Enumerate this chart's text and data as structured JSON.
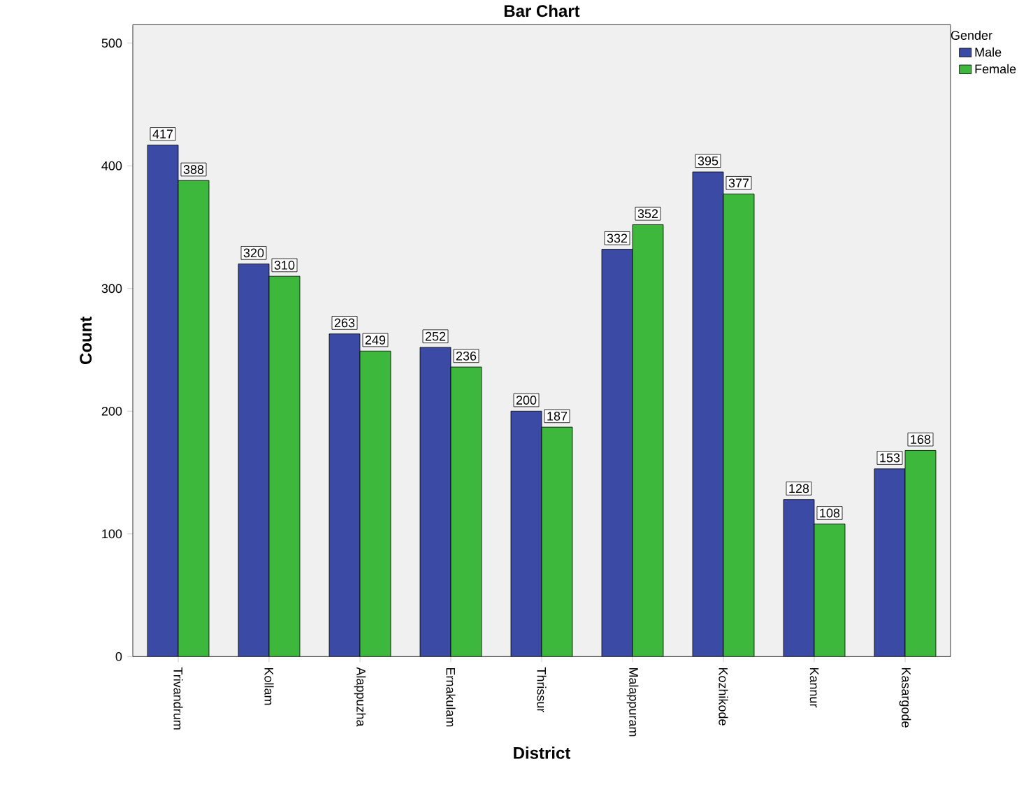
{
  "chart_data": {
    "type": "bar",
    "title": "Bar Chart",
    "xlabel": "District",
    "ylabel": "Count",
    "legend_title": "Gender",
    "categories": [
      "Trivandrum",
      "Kollam",
      "Alappuzha",
      "Ernakulam",
      "Thrissur",
      "Malappuram",
      "Kozhikode",
      "Kannur",
      "Kasargode"
    ],
    "series": [
      {
        "name": "Male",
        "color": "#3b4ba5",
        "values": [
          417,
          320,
          263,
          252,
          200,
          332,
          395,
          128,
          153
        ]
      },
      {
        "name": "Female",
        "color": "#3db83d",
        "values": [
          388,
          310,
          249,
          236,
          187,
          352,
          377,
          108,
          168
        ]
      }
    ],
    "ylim": [
      0,
      515
    ],
    "yticks": [
      0,
      100,
      200,
      300,
      400,
      500
    ],
    "data_labels": true,
    "legend": "top right",
    "grid": false
  }
}
